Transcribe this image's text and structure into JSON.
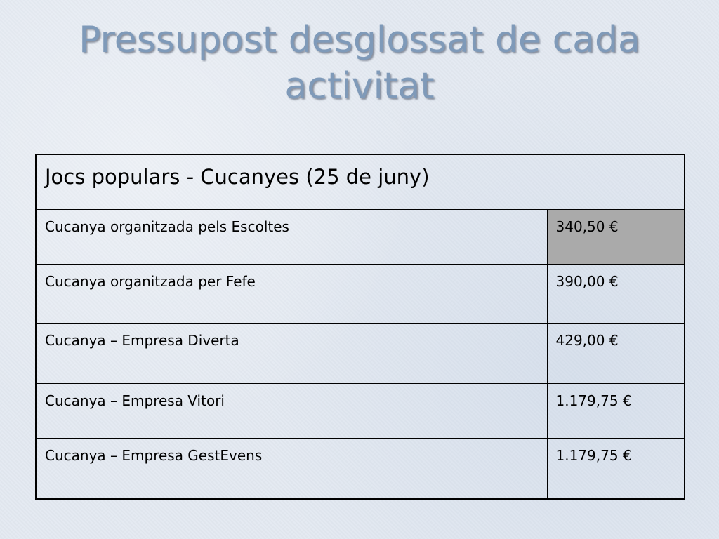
{
  "slide": {
    "title": "Pressupost desglossat de cada activitat"
  },
  "table": {
    "header": "Jocs populars - Cucanyes (25 de juny)",
    "rows": [
      {
        "description": "Cucanya organitzada pels Escoltes",
        "amount": "340,50 €",
        "highlighted": true
      },
      {
        "description": "Cucanya organitzada per Fefe",
        "amount": "390,00 €",
        "highlighted": false
      },
      {
        "description": "Cucanya – Empresa Diverta",
        "amount": "429,00 €",
        "highlighted": false
      },
      {
        "description": "Cucanya – Empresa Vitori",
        "amount": "1.179,75 €",
        "highlighted": false
      },
      {
        "description": "Cucanya – Empresa GestEvens",
        "amount": "1.179,75 €",
        "highlighted": false
      }
    ]
  },
  "colors": {
    "title": "#7f9ab9",
    "highlight_cell": "#aaaaaa",
    "background": "#e3e9f1"
  }
}
